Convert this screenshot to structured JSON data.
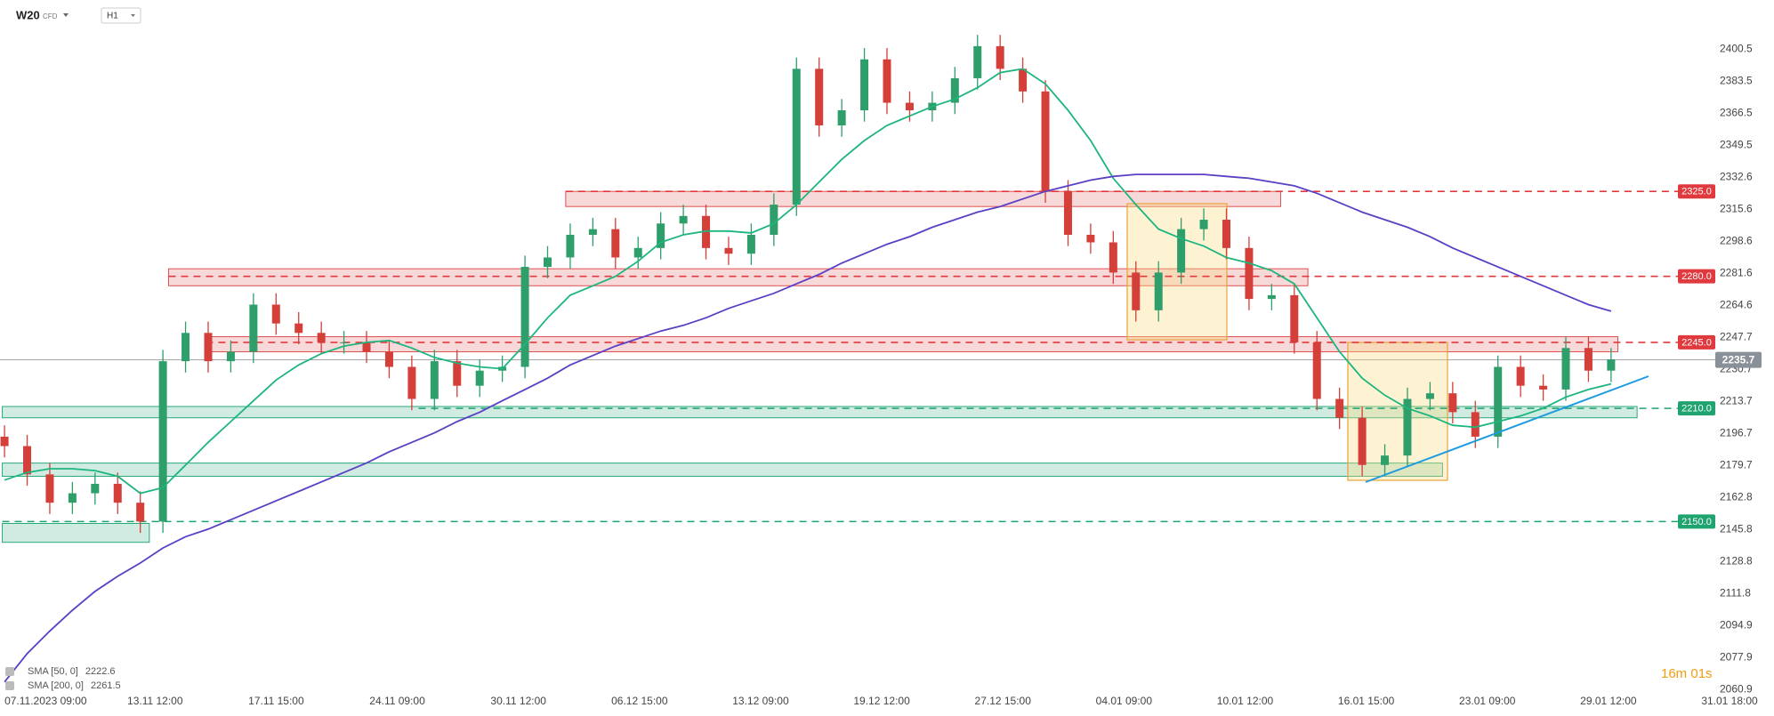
{
  "chart_data": {
    "type": "candlestick",
    "symbol": "W20",
    "instrument_type": "CFD",
    "timeframe": "H1",
    "timer": "16m 01s",
    "x_labels": [
      "07.11.2023 09:00",
      "13.11 12:00",
      "17.11 15:00",
      "24.11 09:00",
      "30.11 12:00",
      "06.12 15:00",
      "13.12 09:00",
      "19.12 12:00",
      "27.12 15:00",
      "04.01 09:00",
      "10.01 12:00",
      "16.01 15:00",
      "23.01 09:00",
      "29.01 12:00",
      "31.01 18:00"
    ],
    "up_color": "#2e9e6b",
    "down_color": "#d43f3a",
    "open": [
      2195,
      2190,
      2175,
      2160,
      2165,
      2170,
      2160,
      2150,
      2235,
      2250,
      2235,
      2240,
      2265,
      2255,
      2250,
      2245,
      2245,
      2240,
      2232,
      2215,
      2235,
      2222,
      2230,
      2232,
      2285,
      2290,
      2302,
      2305,
      2290,
      2295,
      2308,
      2312,
      2295,
      2292,
      2302,
      2318,
      2390,
      2360,
      2368,
      2395,
      2372,
      2368,
      2372,
      2385,
      2402,
      2390,
      2378,
      2325,
      2302,
      2298,
      2282,
      2262,
      2282,
      2305,
      2310,
      2295,
      2268,
      2270,
      2245,
      2215,
      2205,
      2180,
      2185,
      2215,
      2218,
      2208,
      2195,
      2232,
      2222,
      2220,
      2242,
      2230
    ],
    "high": [
      2201,
      2196,
      2181,
      2171,
      2176,
      2176,
      2166,
      2241,
      2256,
      2256,
      2246,
      2271,
      2271,
      2261,
      2256,
      2251,
      2251,
      2246,
      2238,
      2241,
      2241,
      2236,
      2238,
      2291,
      2296,
      2308,
      2311,
      2311,
      2301,
      2314,
      2318,
      2318,
      2301,
      2308,
      2324,
      2396,
      2396,
      2374,
      2401,
      2401,
      2378,
      2378,
      2391,
      2408,
      2408,
      2396,
      2384,
      2331,
      2308,
      2304,
      2288,
      2288,
      2311,
      2316,
      2316,
      2301,
      2276,
      2276,
      2251,
      2221,
      2211,
      2191,
      2221,
      2224,
      2224,
      2214,
      2238,
      2238,
      2228,
      2248,
      2248,
      2242
    ],
    "low": [
      2184,
      2169,
      2154,
      2154,
      2159,
      2154,
      2144,
      2144,
      2229,
      2229,
      2229,
      2234,
      2249,
      2244,
      2239,
      2239,
      2234,
      2226,
      2209,
      2209,
      2216,
      2216,
      2224,
      2226,
      2279,
      2284,
      2296,
      2284,
      2284,
      2289,
      2302,
      2289,
      2286,
      2286,
      2296,
      2312,
      2354,
      2354,
      2362,
      2366,
      2362,
      2362,
      2366,
      2379,
      2384,
      2372,
      2319,
      2296,
      2292,
      2276,
      2256,
      2256,
      2276,
      2299,
      2289,
      2262,
      2262,
      2239,
      2209,
      2199,
      2174,
      2174,
      2179,
      2209,
      2202,
      2189,
      2189,
      2216,
      2214,
      2214,
      2224,
      2224
    ],
    "close": [
      2190,
      2175,
      2160,
      2165,
      2170,
      2160,
      2150,
      2235,
      2250,
      2235,
      2240,
      2265,
      2255,
      2250,
      2245,
      2245,
      2240,
      2232,
      2215,
      2235,
      2222,
      2230,
      2232,
      2285,
      2290,
      2302,
      2305,
      2290,
      2295,
      2308,
      2312,
      2295,
      2292,
      2302,
      2318,
      2390,
      2360,
      2368,
      2395,
      2372,
      2368,
      2372,
      2385,
      2402,
      2390,
      2378,
      2325,
      2302,
      2298,
      2282,
      2262,
      2282,
      2305,
      2310,
      2295,
      2268,
      2270,
      2245,
      2215,
      2205,
      2180,
      2185,
      2215,
      2218,
      2208,
      2195,
      2232,
      2222,
      2220,
      2242,
      2230,
      2236
    ],
    "series": [
      {
        "name": "SMA [50, 0]",
        "color": "#1db57e",
        "last_value": 2222.6,
        "values": [
          2172,
          2176,
          2178,
          2178,
          2177,
          2174,
          2165,
          2168,
          2180,
          2192,
          2203,
          2214,
          2225,
          2233,
          2239,
          2243,
          2245,
          2246,
          2242,
          2237,
          2234,
          2232,
          2231,
          2244,
          2258,
          2270,
          2275,
          2280,
          2288,
          2298,
          2302,
          2304,
          2304,
          2303,
          2308,
          2318,
          2330,
          2342,
          2352,
          2360,
          2365,
          2370,
          2374,
          2380,
          2388,
          2390,
          2382,
          2368,
          2352,
          2332,
          2318,
          2305,
          2300,
          2296,
          2290,
          2287,
          2283,
          2276,
          2258,
          2240,
          2226,
          2217,
          2210,
          2206,
          2201,
          2200,
          2203,
          2206,
          2210,
          2216,
          2220,
          2223
        ]
      },
      {
        "name": "SMA [200, 0]",
        "color": "#5b3fc4",
        "last_value": 2261.5,
        "values": [
          2065,
          2080,
          2092,
          2103,
          2113,
          2121,
          2128,
          2136,
          2142,
          2146,
          2151,
          2156,
          2161,
          2166,
          2171,
          2176,
          2181,
          2187,
          2192,
          2197,
          2203,
          2208,
          2214,
          2220,
          2226,
          2233,
          2238,
          2243,
          2247,
          2251,
          2254,
          2258,
          2263,
          2267,
          2271,
          2276,
          2281,
          2287,
          2292,
          2297,
          2301,
          2306,
          2310,
          2314,
          2317,
          2321,
          2325,
          2328,
          2331,
          2333,
          2334,
          2334,
          2334,
          2334,
          2333,
          2332,
          2330,
          2328,
          2324,
          2319,
          2314,
          2310,
          2306,
          2301,
          2295,
          2290,
          2285,
          2280,
          2275,
          2270,
          2265,
          2261.5
        ]
      }
    ],
    "levels": [
      {
        "value": 2325,
        "label": "2325.0",
        "color": "#e0393e"
      },
      {
        "value": 2280,
        "label": "2280.0",
        "color": "#e0393e"
      },
      {
        "value": 2245,
        "label": "2245.0",
        "color": "#e0393e"
      },
      {
        "value": 2210,
        "label": "2210.0",
        "color": "#1fa36f"
      },
      {
        "value": 2150,
        "label": "2150.0",
        "color": "#1fa36f"
      }
    ],
    "zones": [
      {
        "low": 2317,
        "high": 2325,
        "color": "#e05050"
      },
      {
        "low": 2275,
        "high": 2284,
        "color": "#e05050"
      },
      {
        "low": 2240,
        "high": 2248,
        "color": "#e05050"
      },
      {
        "low": 2205,
        "high": 2211,
        "color": "#2aa87a"
      },
      {
        "low": 2174,
        "high": 2181,
        "color": "#2aa87a"
      },
      {
        "low": 2139,
        "high": 2149,
        "color": "#2aa87a"
      }
    ],
    "current_price": 2235.7,
    "current_price_color": "#8a9097",
    "ylim": [
      2054,
      2426
    ],
    "yticks": [
      2400.5,
      2383.5,
      2366.5,
      2349.5,
      2332.6,
      2315.6,
      2298.6,
      2281.6,
      2264.6,
      2247.7,
      2230.7,
      2213.7,
      2196.7,
      2179.7,
      2162.8,
      2145.8,
      2128.8,
      2111.8,
      2094.9,
      2077.9,
      2060.9
    ]
  }
}
